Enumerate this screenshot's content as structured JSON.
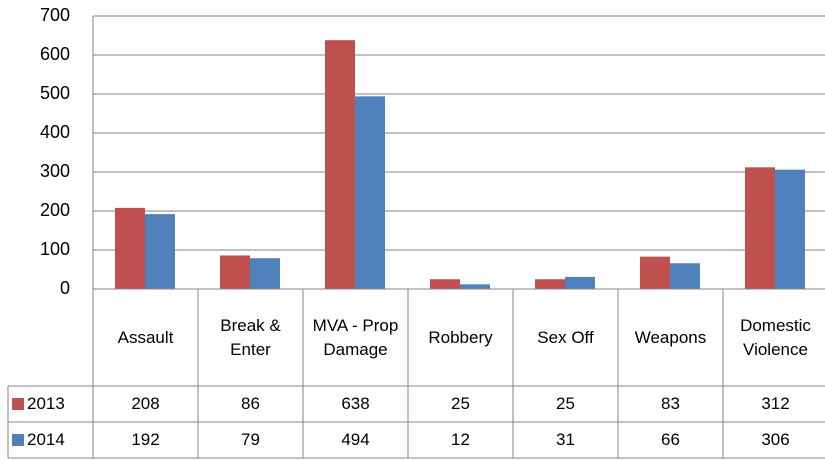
{
  "chart_data": {
    "type": "bar",
    "categories": [
      "Assault",
      "Break & Enter",
      "MVA - Prop Damage",
      "Robbery",
      "Sex Off",
      "Weapons",
      "Domestic Violence"
    ],
    "series": [
      {
        "name": "2013",
        "color": "#c0504d",
        "values": [
          208,
          86,
          638,
          25,
          25,
          83,
          312
        ]
      },
      {
        "name": "2014",
        "color": "#4f81bd",
        "values": [
          192,
          79,
          494,
          12,
          31,
          66,
          306
        ]
      }
    ],
    "ylim": [
      0,
      700
    ],
    "yticks": [
      0,
      100,
      200,
      300,
      400,
      500,
      600,
      700
    ],
    "grid": true
  }
}
